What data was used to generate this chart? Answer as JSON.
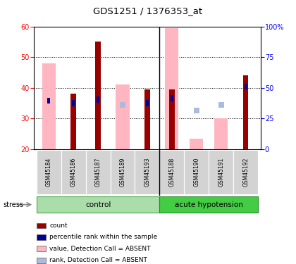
{
  "title": "GDS1251 / 1376353_at",
  "samples": [
    "GSM45184",
    "GSM45186",
    "GSM45187",
    "GSM45189",
    "GSM45193",
    "GSM45188",
    "GSM45190",
    "GSM45191",
    "GSM45192"
  ],
  "n_control": 5,
  "n_acute": 4,
  "ylim_left": [
    20,
    60
  ],
  "ylim_right": [
    0,
    100
  ],
  "y_ticks_left": [
    20,
    30,
    40,
    50,
    60
  ],
  "y_ticks_right": [
    0,
    25,
    50,
    75,
    100
  ],
  "bar_bottom": 20,
  "bars": {
    "GSM45184": {
      "value_absent": 48.0,
      "rank_absent": null,
      "count": null,
      "percentile": 39.5
    },
    "GSM45186": {
      "value_absent": null,
      "rank_absent": null,
      "count": 38.0,
      "percentile": 37.5
    },
    "GSM45187": {
      "value_absent": null,
      "rank_absent": null,
      "count": 55.0,
      "percentile": 40.5
    },
    "GSM45189": {
      "value_absent": 41.0,
      "rank_absent": 36.0,
      "count": null,
      "percentile": null
    },
    "GSM45193": {
      "value_absent": null,
      "rank_absent": null,
      "count": 39.5,
      "percentile": 37.5
    },
    "GSM45188": {
      "value_absent": 59.5,
      "rank_absent": null,
      "count": 39.5,
      "percentile": 41.5
    },
    "GSM45190": {
      "value_absent": 23.5,
      "rank_absent": 31.5,
      "count": null,
      "percentile": null
    },
    "GSM45191": {
      "value_absent": 30.0,
      "rank_absent": 36.0,
      "count": null,
      "percentile": null
    },
    "GSM45192": {
      "value_absent": null,
      "rank_absent": null,
      "count": 44.0,
      "percentile": 51.0
    }
  },
  "colors": {
    "count": "#990000",
    "percentile": "#000099",
    "value_absent": "#FFB6C1",
    "rank_absent": "#AABBDD"
  },
  "color_control": "#AADDAA",
  "color_acute": "#44CC44",
  "legend": [
    {
      "label": "count",
      "color": "#990000"
    },
    {
      "label": "percentile rank within the sample",
      "color": "#000099"
    },
    {
      "label": "value, Detection Call = ABSENT",
      "color": "#FFB6C1"
    },
    {
      "label": "rank, Detection Call = ABSENT",
      "color": "#AABBDD"
    }
  ]
}
